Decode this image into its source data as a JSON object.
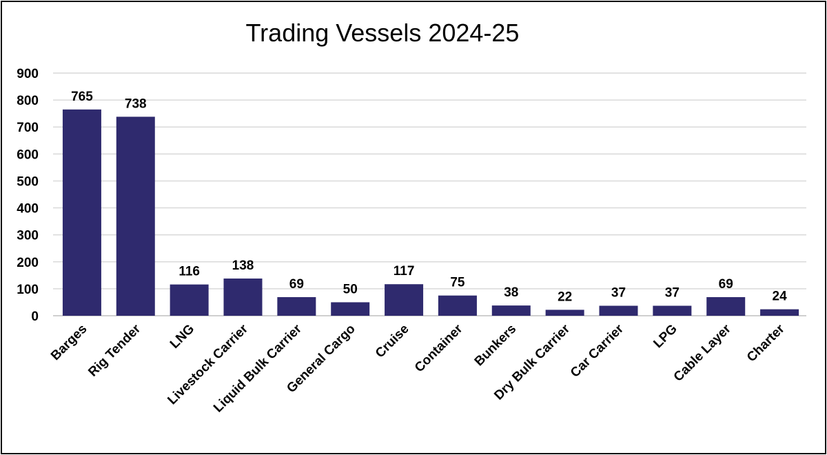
{
  "chart_data": {
    "type": "bar",
    "title": "Trading Vessels 2024-25",
    "xlabel": "",
    "ylabel": "",
    "ylim": [
      0,
      900
    ],
    "yticks": [
      0,
      100,
      200,
      300,
      400,
      500,
      600,
      700,
      800,
      900
    ],
    "grid": true,
    "legend": "none",
    "bar_color": "#2f2a6e",
    "categories": [
      "Barges",
      "Rig Tender",
      "LNG",
      "Livestock Carrier",
      "Liquid Bulk Carrier",
      "General Cargo",
      "Cruise",
      "Container",
      "Bunkers",
      "Dry Bulk Carrier",
      "Car Carrier",
      "LPG",
      "Cable Layer",
      "Charter"
    ],
    "values": [
      765,
      738,
      116,
      138,
      69,
      50,
      117,
      75,
      38,
      22,
      37,
      37,
      69,
      24
    ]
  }
}
